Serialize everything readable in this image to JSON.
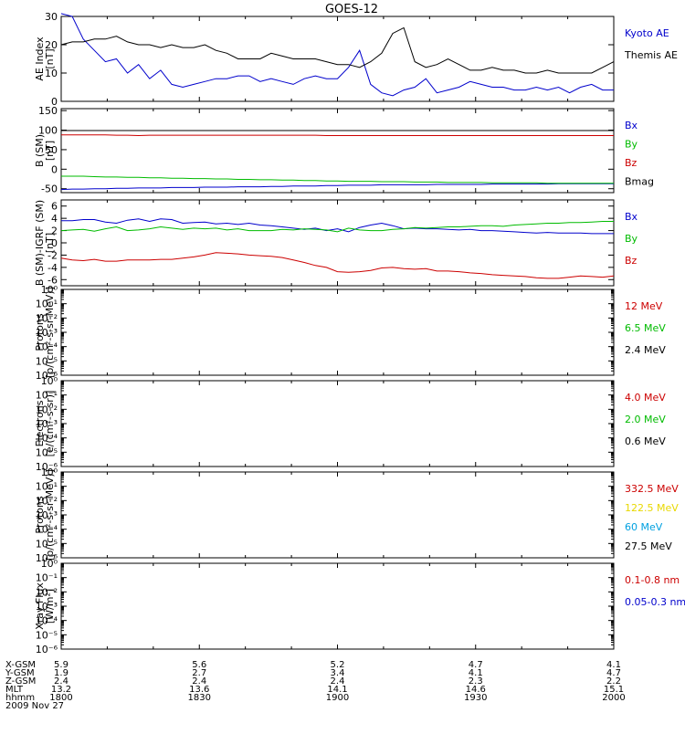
{
  "title": "GOES-12",
  "colors": {
    "black": "#000000",
    "blue": "#0000cc",
    "green": "#00bb00",
    "red": "#cc0000",
    "yellow": "#e8d800",
    "cyan": "#00a0e0"
  },
  "log_tick_labels": [
    "10⁰",
    "10⁻¹",
    "10⁻²",
    "10⁻³",
    "10⁻⁴",
    "10⁻⁵",
    "10⁻⁶"
  ],
  "chart_data": [
    {
      "type": "line",
      "id": "ae",
      "ylabel": [
        "AE Index",
        "[nT]"
      ],
      "ylim": [
        0,
        30
      ],
      "yticks": [
        0,
        10,
        20,
        30
      ],
      "series": [
        {
          "name": "Kyoto AE",
          "color": "blue",
          "values": [
            31,
            30,
            22,
            18,
            14,
            15,
            10,
            13,
            8,
            11,
            6,
            5,
            6,
            7,
            8,
            8,
            9,
            9,
            7,
            8,
            7,
            6,
            8,
            9,
            8,
            8,
            12,
            18,
            6,
            3,
            2,
            4,
            5,
            8,
            3,
            4,
            5,
            7,
            6,
            5,
            5,
            4,
            4,
            5,
            4,
            5,
            3,
            5,
            6,
            4,
            4
          ]
        },
        {
          "name": "Themis AE",
          "color": "black",
          "values": [
            20,
            21,
            21,
            22,
            22,
            23,
            21,
            20,
            20,
            19,
            20,
            19,
            19,
            20,
            18,
            17,
            15,
            15,
            15,
            17,
            16,
            15,
            15,
            15,
            14,
            13,
            13,
            12,
            14,
            17,
            24,
            26,
            14,
            12,
            13,
            15,
            13,
            11,
            11,
            12,
            11,
            11,
            10,
            10,
            11,
            10,
            10,
            10,
            10,
            12,
            14
          ]
        }
      ],
      "legend": [
        "Kyoto AE",
        "Themis AE"
      ]
    },
    {
      "type": "line",
      "id": "b",
      "ylabel": [
        "B (SM)",
        "[nT]"
      ],
      "ylim": [
        -60,
        155
      ],
      "yticks": [
        -50,
        0,
        50,
        100,
        150
      ],
      "series": [
        {
          "name": "Bx",
          "color": "blue",
          "values": [
            -52,
            -51,
            -51,
            -50,
            -50,
            -49,
            -49,
            -48,
            -48,
            -48,
            -47,
            -47,
            -47,
            -46,
            -46,
            -46,
            -45,
            -45,
            -45,
            -44,
            -44,
            -43,
            -43,
            -43,
            -42,
            -42,
            -41,
            -41,
            -41,
            -40,
            -40,
            -40,
            -40,
            -40,
            -39,
            -39,
            -39,
            -39,
            -39,
            -38,
            -38,
            -38,
            -38,
            -38,
            -38,
            -37,
            -37,
            -37,
            -37,
            -37,
            -37
          ]
        },
        {
          "name": "By",
          "color": "green",
          "values": [
            -18,
            -18,
            -18,
            -19,
            -20,
            -20,
            -21,
            -21,
            -22,
            -22,
            -23,
            -23,
            -24,
            -24,
            -25,
            -25,
            -26,
            -26,
            -27,
            -27,
            -28,
            -28,
            -29,
            -29,
            -30,
            -30,
            -31,
            -31,
            -31,
            -32,
            -32,
            -32,
            -33,
            -33,
            -33,
            -34,
            -34,
            -34,
            -34,
            -35,
            -35,
            -35,
            -35,
            -35,
            -36,
            -36,
            -36,
            -36,
            -36,
            -36,
            -36
          ]
        },
        {
          "name": "Bz",
          "color": "red",
          "values": [
            88,
            88,
            88,
            88,
            88,
            87,
            87,
            86,
            87,
            87,
            87,
            87,
            87,
            87,
            87,
            87,
            87,
            87,
            87,
            87,
            87,
            87,
            87,
            87,
            86,
            86,
            86,
            86,
            86,
            86,
            86,
            86,
            86,
            86,
            86,
            86,
            86,
            86,
            86,
            86,
            86,
            86,
            86,
            86,
            86,
            86,
            86,
            86,
            86,
            86,
            86
          ]
        },
        {
          "name": "Bmag",
          "color": "black",
          "values": [
            99,
            99,
            99,
            99,
            99,
            99,
            99,
            99,
            99,
            99,
            99,
            99,
            99,
            99,
            99,
            99,
            99,
            99,
            99,
            99,
            99,
            99,
            99,
            99,
            99,
            99,
            99,
            99,
            99,
            99,
            99,
            99,
            99,
            99,
            99,
            99,
            99,
            99,
            99,
            99,
            99,
            99,
            99,
            99,
            99,
            99,
            99,
            99,
            99,
            99,
            99
          ]
        }
      ],
      "legend": [
        "Bx",
        "By",
        "Bz",
        "Bmag"
      ]
    },
    {
      "type": "line",
      "id": "bigrf",
      "ylabel": [
        "B (SM)-IGRF (SM)",
        "[nT]"
      ],
      "ylim": [
        -7,
        7
      ],
      "yticks": [
        -6,
        -4,
        -2,
        0,
        2,
        4,
        6
      ],
      "series": [
        {
          "name": "Bx",
          "color": "blue",
          "values": [
            3.6,
            3.6,
            3.8,
            3.8,
            3.4,
            3.2,
            3.7,
            3.9,
            3.5,
            3.9,
            3.8,
            3.2,
            3.3,
            3.4,
            3.1,
            3.2,
            3.0,
            3.2,
            2.9,
            2.8,
            2.6,
            2.4,
            2.2,
            2.4,
            2.0,
            2.3,
            1.8,
            2.5,
            2.9,
            3.2,
            2.8,
            2.3,
            2.4,
            2.3,
            2.3,
            2.2,
            2.1,
            2.2,
            2.0,
            2.0,
            1.9,
            1.8,
            1.7,
            1.6,
            1.7,
            1.6,
            1.6,
            1.6,
            1.5,
            1.5,
            1.5
          ]
        },
        {
          "name": "By",
          "color": "green",
          "values": [
            2.0,
            2.1,
            2.2,
            1.9,
            2.3,
            2.6,
            2.0,
            2.1,
            2.3,
            2.6,
            2.4,
            2.2,
            2.4,
            2.3,
            2.4,
            2.1,
            2.3,
            2.0,
            2.0,
            2.0,
            2.2,
            2.1,
            2.3,
            2.2,
            2.1,
            1.8,
            2.4,
            2.1,
            2.0,
            2.0,
            2.2,
            2.3,
            2.5,
            2.4,
            2.5,
            2.6,
            2.6,
            2.7,
            2.8,
            2.8,
            2.7,
            2.9,
            3.0,
            3.1,
            3.2,
            3.2,
            3.3,
            3.3,
            3.4,
            3.5,
            3.5
          ]
        },
        {
          "name": "Bz",
          "color": "red",
          "values": [
            -2.5,
            -2.8,
            -2.9,
            -2.7,
            -3.0,
            -3.0,
            -2.8,
            -2.8,
            -2.8,
            -2.7,
            -2.7,
            -2.5,
            -2.3,
            -2.0,
            -1.6,
            -1.7,
            -1.8,
            -2.0,
            -2.1,
            -2.2,
            -2.4,
            -2.8,
            -3.2,
            -3.7,
            -4.0,
            -4.7,
            -4.8,
            -4.7,
            -4.5,
            -4.1,
            -4.0,
            -4.2,
            -4.3,
            -4.2,
            -4.6,
            -4.6,
            -4.7,
            -4.9,
            -5.0,
            -5.2,
            -5.3,
            -5.4,
            -5.5,
            -5.7,
            -5.8,
            -5.8,
            -5.6,
            -5.4,
            -5.5,
            -5.6,
            -5.4
          ]
        }
      ],
      "legend": [
        "Bx",
        "By",
        "Bz"
      ]
    },
    {
      "type": "line",
      "id": "protons1",
      "ylabel": [
        "Protons",
        "[p/(cm²-s-sr-MeV)]"
      ],
      "yscale": "log",
      "ylim": [
        1e-06,
        1
      ],
      "series": [],
      "legend": [
        "12 MeV",
        "6.5 MeV",
        "2.4 MeV"
      ],
      "legend_colors": [
        "red",
        "green",
        "black"
      ]
    },
    {
      "type": "line",
      "id": "electrons",
      "ylabel": [
        "Electrons",
        "[e/(cm²-s-sr)]"
      ],
      "yscale": "log",
      "ylim": [
        1e-06,
        1
      ],
      "series": [],
      "legend": [
        "4.0 MeV",
        "2.0 MeV",
        "0.6 MeV"
      ],
      "legend_colors": [
        "red",
        "green",
        "black"
      ]
    },
    {
      "type": "line",
      "id": "protons2",
      "ylabel": [
        "Protons",
        "[p/(cm²-s-sr-MeV)]"
      ],
      "yscale": "log",
      "ylim": [
        1e-06,
        1
      ],
      "series": [],
      "legend": [
        "332.5 MeV",
        "122.5 MeV",
        "60 MeV",
        "27.5 MeV"
      ],
      "legend_colors": [
        "red",
        "yellow",
        "cyan",
        "black"
      ]
    },
    {
      "type": "line",
      "id": "xray",
      "ylabel": [
        "Xray Flux",
        "[W/m²]"
      ],
      "yscale": "log",
      "ylim": [
        1e-06,
        1
      ],
      "series": [],
      "legend": [
        "0.1-0.8 nm",
        "0.05-0.3 nm"
      ],
      "legend_colors": [
        "red",
        "blue"
      ]
    }
  ],
  "x_axis": {
    "row_labels": [
      "X-GSM",
      "Y-GSM",
      "Z-GSM",
      "MLT",
      "hhmm"
    ],
    "columns": [
      [
        "5.9",
        "1.9",
        "2.4",
        "13.2",
        "1800"
      ],
      [
        "5.6",
        "2.7",
        "2.4",
        "13.6",
        "1830"
      ],
      [
        "5.2",
        "3.4",
        "2.4",
        "14.1",
        "1900"
      ],
      [
        "4.7",
        "4.1",
        "2.3",
        "14.6",
        "1930"
      ],
      [
        "4.1",
        "4.7",
        "2.2",
        "15.1",
        "2000"
      ]
    ],
    "date": "2009 Nov 27"
  }
}
